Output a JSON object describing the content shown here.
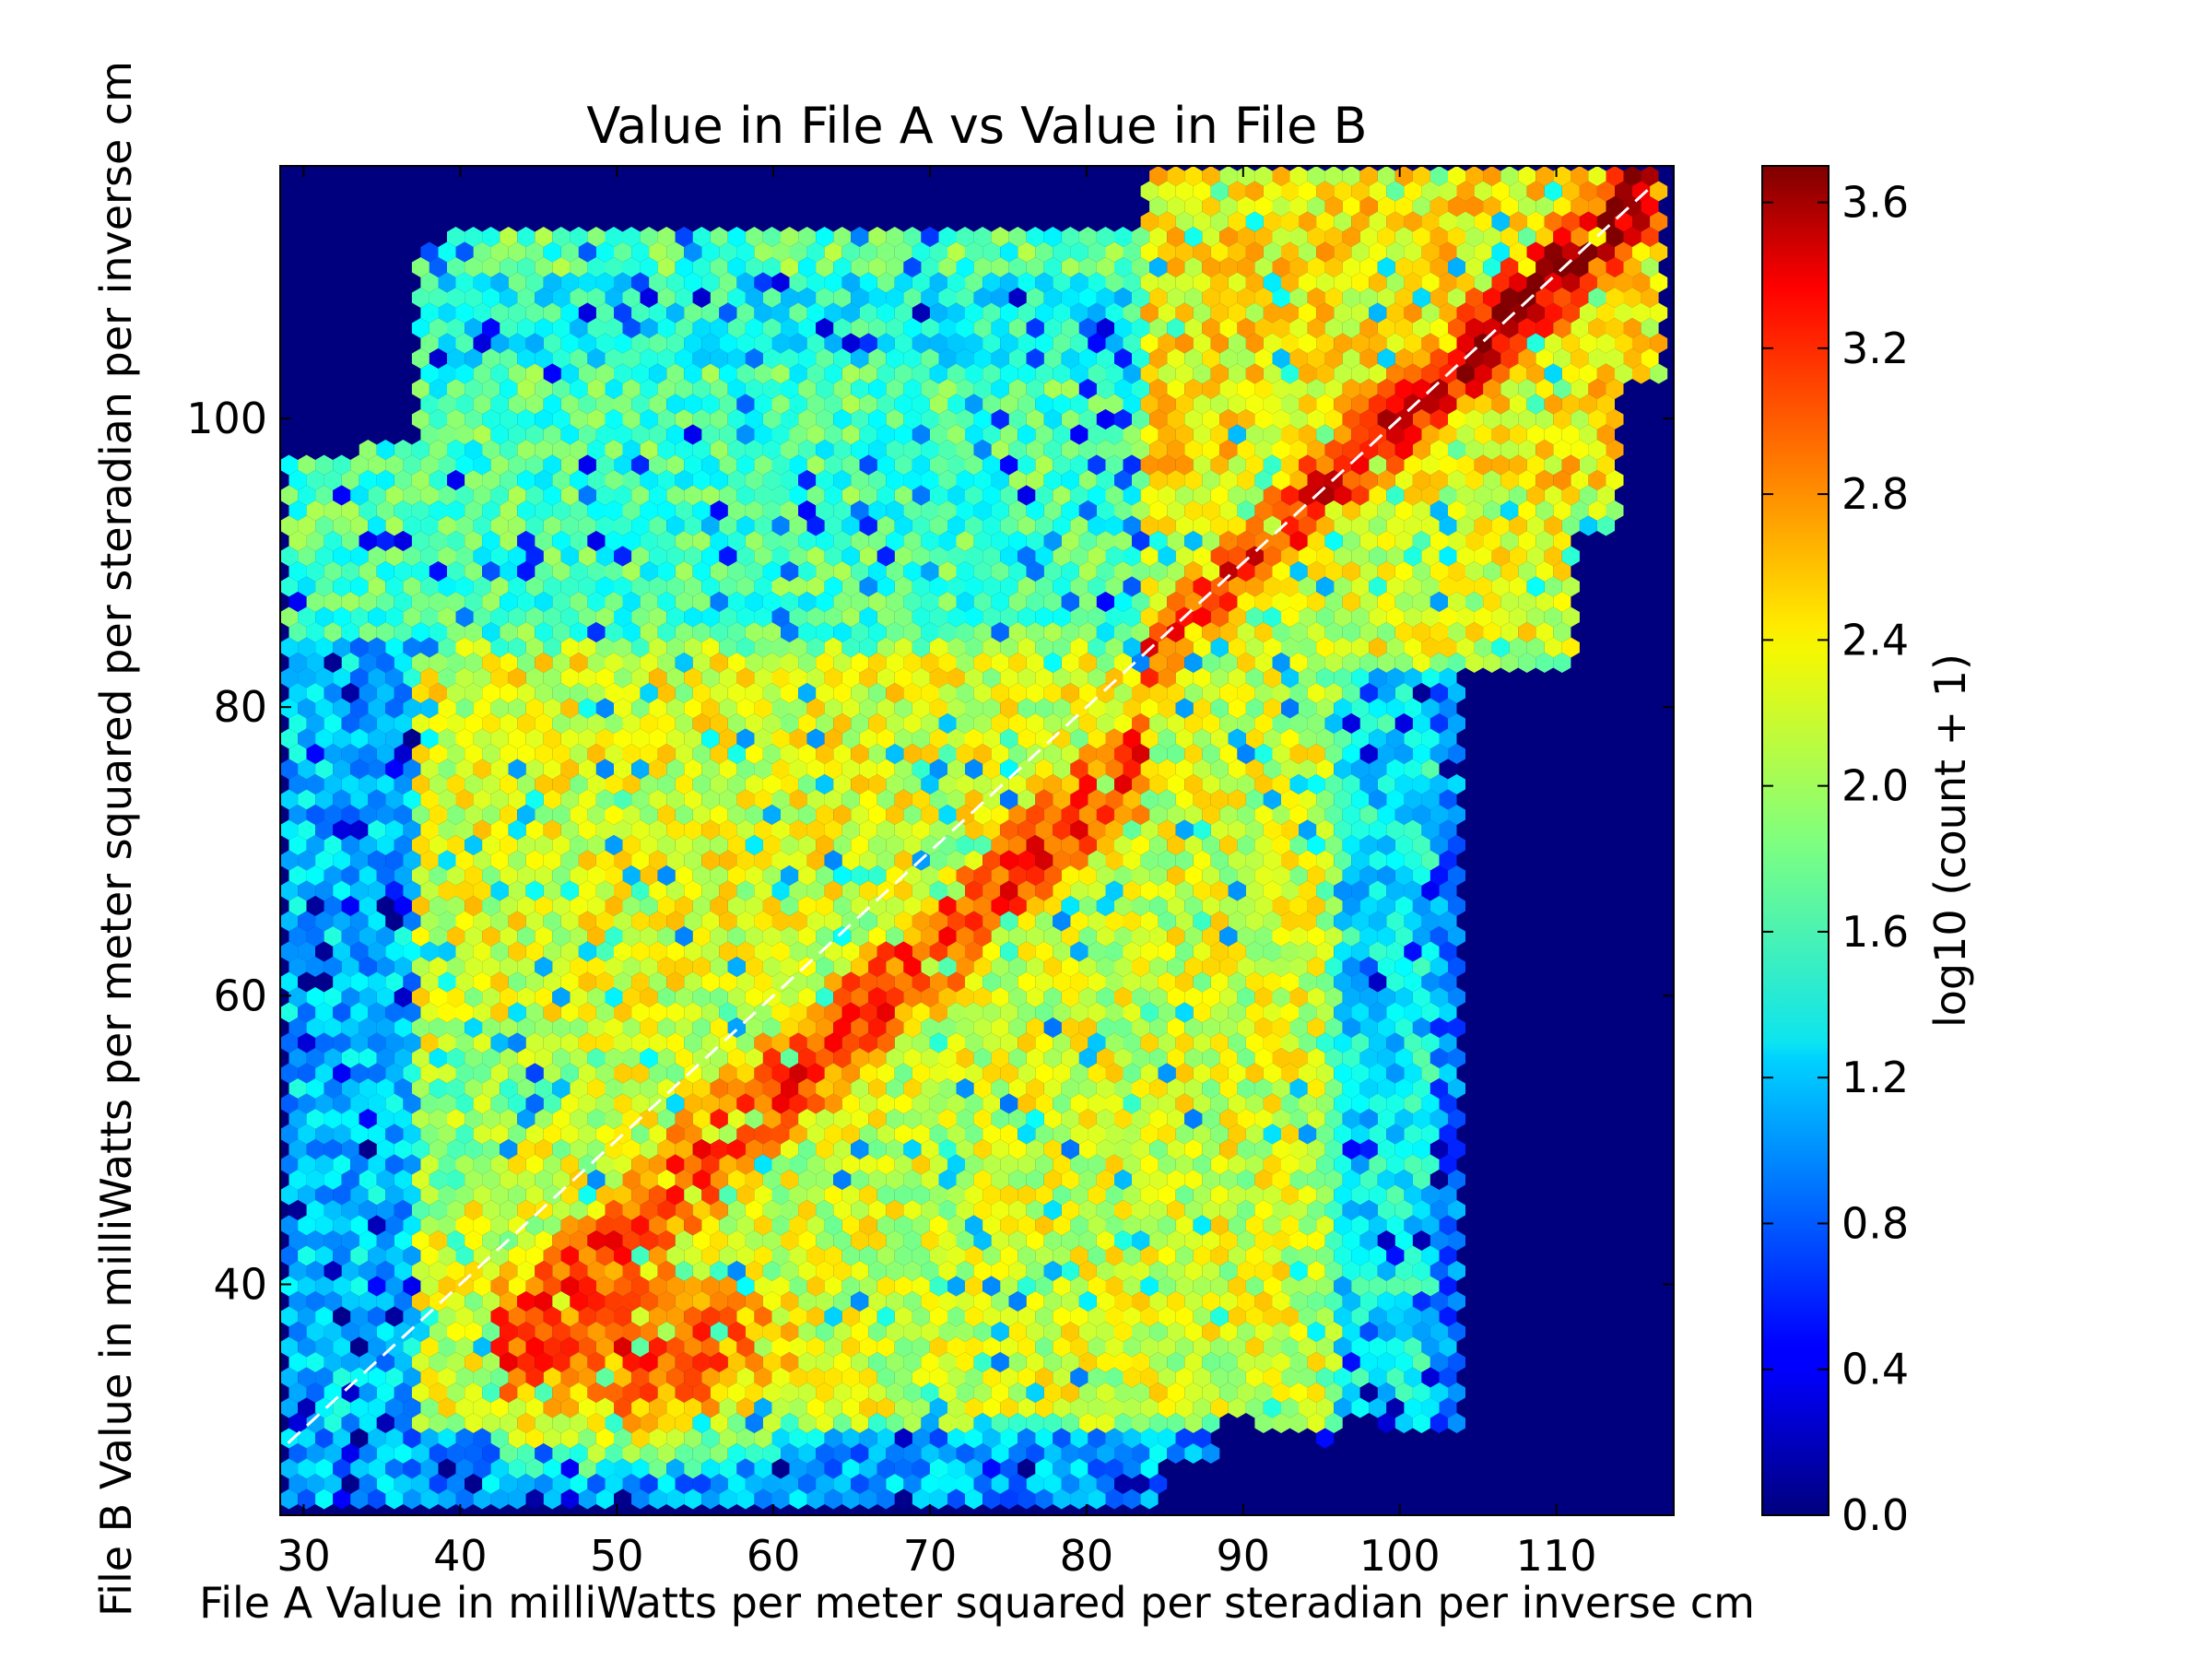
{
  "chart_data": {
    "type": "heatmap",
    "subtype": "hexbin",
    "title": "Value in File A vs Value in File B",
    "xlabel": "File A Value in milliWatts per meter squared per steradian per inverse cm",
    "ylabel": "File B Value in milliWatts per meter squared per steradian per inverse cm",
    "xlim": [
      28.5,
      117.5
    ],
    "ylim": [
      24,
      117.5
    ],
    "x_ticks": [
      30,
      40,
      50,
      60,
      70,
      80,
      90,
      100,
      110
    ],
    "x_tick_labels": [
      "30",
      "40",
      "50",
      "60",
      "70",
      "80",
      "90",
      "100",
      "110"
    ],
    "y_ticks": [
      40,
      60,
      80,
      100
    ],
    "y_tick_labels": [
      "40",
      "60",
      "80",
      "100"
    ],
    "colorbar": {
      "label": "log10 (count + 1)",
      "range": [
        0.0,
        3.7
      ],
      "ticks": [
        0.0,
        0.4,
        0.8,
        1.2,
        1.6,
        2.0,
        2.4,
        2.8,
        3.2,
        3.6
      ],
      "tick_labels": [
        "0.0",
        "0.4",
        "0.8",
        "1.2",
        "1.6",
        "2.0",
        "2.4",
        "2.8",
        "3.2",
        "3.6"
      ],
      "colormap": "jet"
    },
    "reference_line": {
      "style": "dashed",
      "color": "#ffffff",
      "from": [
        29,
        29
      ],
      "to": [
        116,
        116
      ]
    },
    "background_color": "#00007f",
    "grid": false
  }
}
